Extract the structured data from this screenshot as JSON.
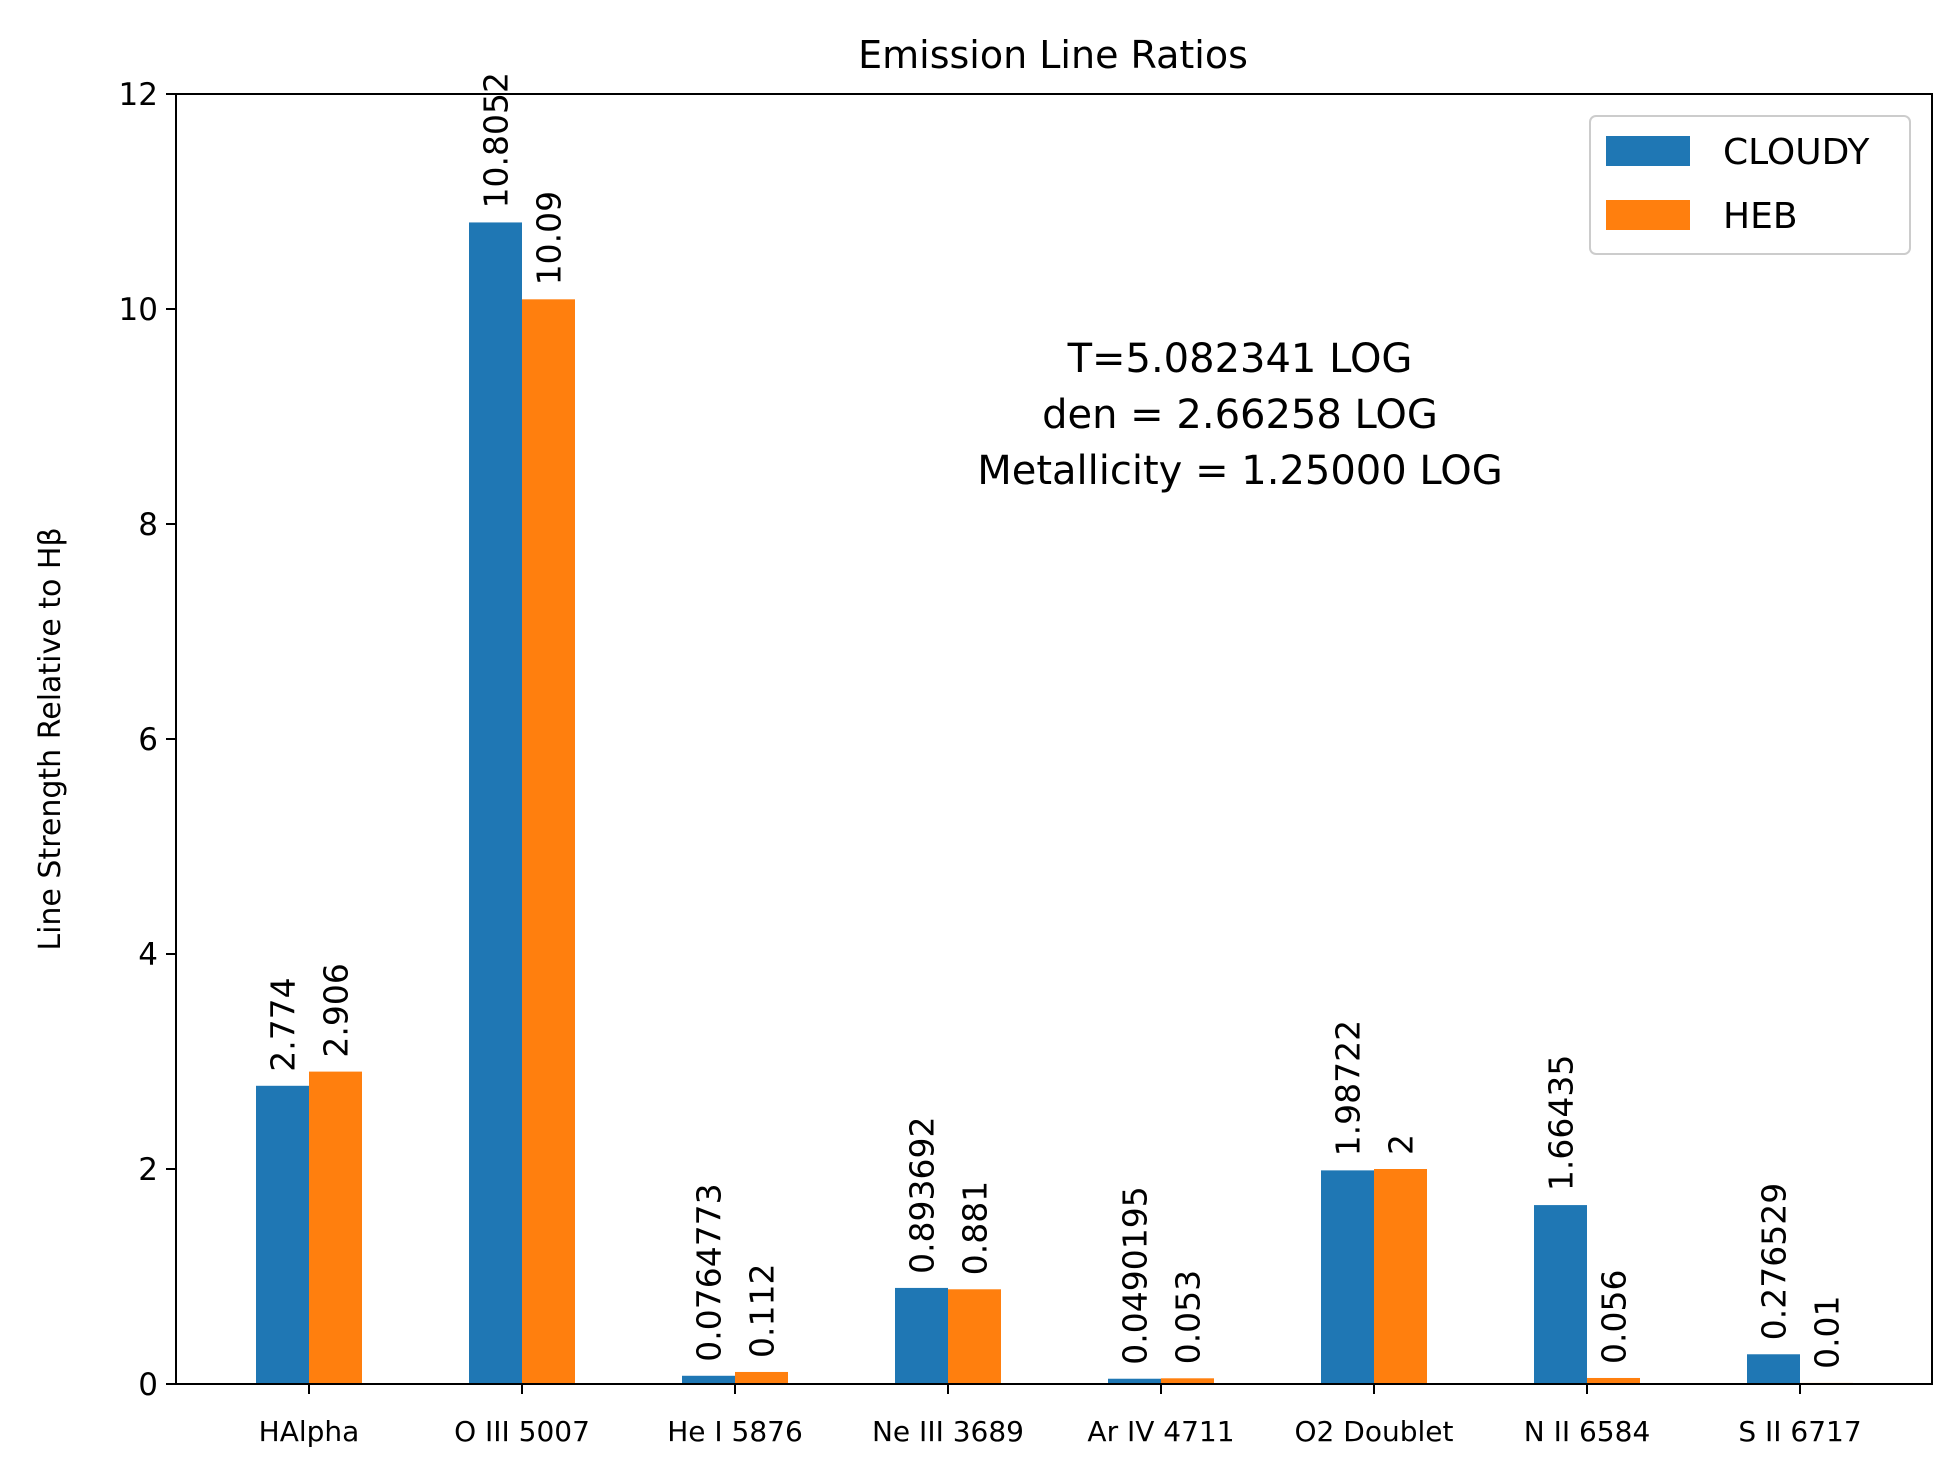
{
  "chart_data": {
    "type": "bar",
    "title": "Emission Line Ratios",
    "xlabel": "",
    "ylabel": "Line Strength Relative to Hβ",
    "ylim": [
      0,
      12
    ],
    "yticks": [
      "0",
      "2",
      "4",
      "6",
      "8",
      "10",
      "12"
    ],
    "ytick_values": [
      0,
      2,
      4,
      6,
      8,
      10,
      12
    ],
    "grid": false,
    "legend_position": "top-right",
    "categories": [
      "HAlpha",
      "O III 5007",
      "He I 5876",
      "Ne III 3689",
      "Ar IV 4711",
      "O2 Doublet",
      "N II 6584",
      "S II 6717"
    ],
    "series": [
      {
        "name": "CLOUDY",
        "color": "#1f77b4",
        "values": [
          2.774,
          10.8052,
          0.0764773,
          0.893692,
          0.0490195,
          1.98722,
          1.66435,
          0.276529
        ],
        "labels": [
          "2.774",
          "10.8052",
          "0.0764773",
          "0.893692",
          "0.0490195",
          "1.98722",
          "1.66435",
          "0.276529"
        ]
      },
      {
        "name": "HEB",
        "color": "#ff7f0e",
        "values": [
          2.906,
          10.09,
          0.112,
          0.881,
          0.053,
          2,
          0.056,
          0.01
        ],
        "labels": [
          "2.906",
          "10.09",
          "0.112",
          "0.881",
          "0.053",
          "2",
          "0.056",
          "0.01"
        ]
      }
    ],
    "annotation": {
      "lines": [
        "T=5.082341 LOG",
        "den = 2.66258 LOG",
        "Metallicity = 1.25000 LOG"
      ]
    }
  }
}
